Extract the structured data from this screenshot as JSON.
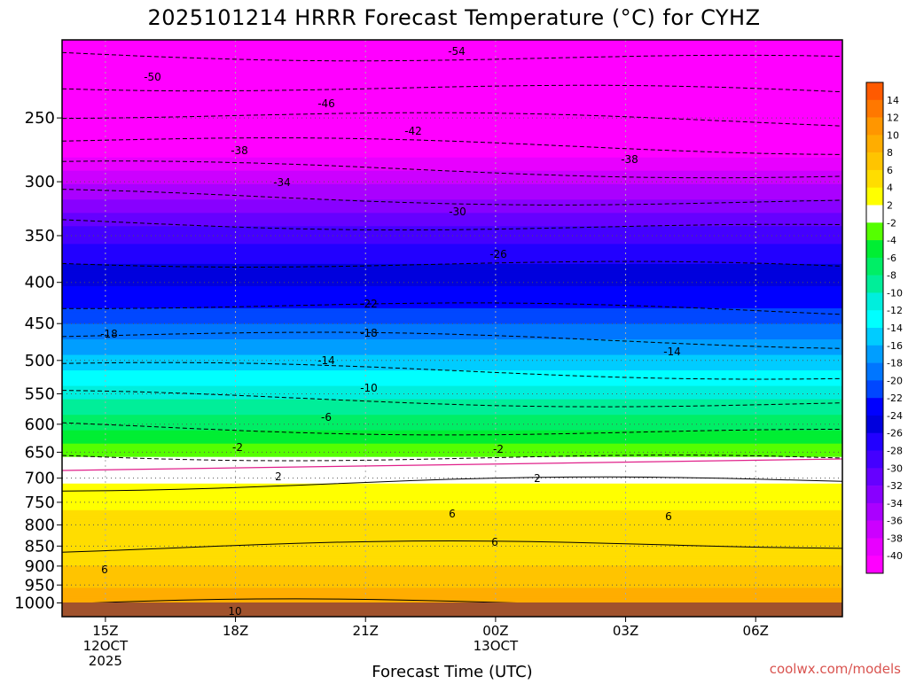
{
  "chart_data": {
    "type": "heatmap",
    "title": "2025101214 HRRR Forecast Temperature (°C) for CYHZ",
    "xlabel": "Forecast Time (UTC)",
    "ylabel": "",
    "x_ticks": [
      {
        "label": [
          "15Z",
          "12OCT",
          "2025"
        ]
      },
      {
        "label": [
          "18Z"
        ]
      },
      {
        "label": [
          "21Z"
        ]
      },
      {
        "label": [
          "00Z",
          "13OCT"
        ]
      },
      {
        "label": [
          "03Z"
        ]
      },
      {
        "label": [
          "06Z"
        ]
      }
    ],
    "x_range": [
      "2025-10-12 14Z",
      "2025-10-13 08Z"
    ],
    "y_axis": {
      "quantity": "pressure (hPa)",
      "scale": "log",
      "reversed": true,
      "range": [
        1040,
        200
      ],
      "tick_labels": [
        250,
        300,
        350,
        400,
        450,
        500,
        550,
        600,
        650,
        700,
        750,
        800,
        850,
        900,
        950,
        1000
      ]
    },
    "grid": true,
    "colorbar": {
      "position": "right",
      "tick_labels": [
        "14",
        "12",
        "10",
        "8",
        "6",
        "4",
        "2",
        "-2",
        "-4",
        "-6",
        "-8",
        "-10",
        "-12",
        "-14",
        "-16",
        "-18",
        "-20",
        "-22",
        "-24",
        "-26",
        "-28",
        "-30",
        "-32",
        "-34",
        "-36",
        "-38",
        "-40"
      ],
      "colors_top_to_bottom": [
        "#ff5a00",
        "#ff7800",
        "#ff9600",
        "#ffad00",
        "#ffc400",
        "#ffdd00",
        "#ffff00",
        "#ffffff",
        "#55ff00",
        "#00ee33",
        "#00ee66",
        "#00ee99",
        "#00eedd",
        "#00ffff",
        "#00ccff",
        "#009eff",
        "#0076ff",
        "#0047ff",
        "#0000ff",
        "#0000dd",
        "#2200ff",
        "#4400ff",
        "#6600ff",
        "#8800ff",
        "#aa00ff",
        "#cc00ff",
        "#e800ff",
        "#ff00ff"
      ]
    },
    "contour_labels": [
      {
        "value": "-54"
      },
      {
        "value": "-50"
      },
      {
        "value": "-46"
      },
      {
        "value": "-42"
      },
      {
        "value": "-38"
      },
      {
        "value": "-38"
      },
      {
        "value": "-34"
      },
      {
        "value": "-30"
      },
      {
        "value": "-26"
      },
      {
        "value": "-22"
      },
      {
        "value": "-18"
      },
      {
        "value": "-18"
      },
      {
        "value": "-14"
      },
      {
        "value": "-14"
      },
      {
        "value": "-10"
      },
      {
        "value": "-6"
      },
      {
        "value": "-2"
      },
      {
        "value": "-2"
      },
      {
        "value": "2"
      },
      {
        "value": "2"
      },
      {
        "value": "6"
      },
      {
        "value": "6"
      },
      {
        "value": "6"
      },
      {
        "value": "6"
      },
      {
        "value": "10"
      }
    ],
    "temperature_profile": [
      {
        "p": 210,
        "t": -54
      },
      {
        "p": 230,
        "t": -50
      },
      {
        "p": 250,
        "t": -46
      },
      {
        "p": 270,
        "t": -42
      },
      {
        "p": 290,
        "t": -38
      },
      {
        "p": 315,
        "t": -34
      },
      {
        "p": 340,
        "t": -30
      },
      {
        "p": 380,
        "t": -26
      },
      {
        "p": 430,
        "t": -22
      },
      {
        "p": 470,
        "t": -18
      },
      {
        "p": 515,
        "t": -14
      },
      {
        "p": 560,
        "t": -10
      },
      {
        "p": 610,
        "t": -6
      },
      {
        "p": 660,
        "t": -2
      },
      {
        "p": 690,
        "t": 0
      },
      {
        "p": 710,
        "t": 2
      },
      {
        "p": 800,
        "t": 5
      },
      {
        "p": 850,
        "t": 6
      },
      {
        "p": 900,
        "t": 6
      },
      {
        "p": 960,
        "t": 8
      },
      {
        "p": 1000,
        "t": 10
      }
    ]
  },
  "watermark": "coolwx.com/models"
}
